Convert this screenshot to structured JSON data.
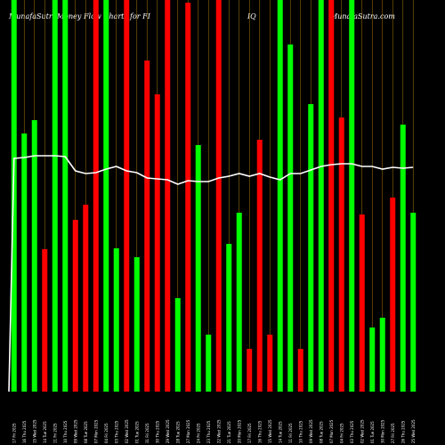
{
  "header": {
    "brand_left": "MunafaSutra",
    "title": "Money Flow  Charts for FI",
    "ticker": "IQ",
    "brand_right": "MunafaSutra.com"
  },
  "colors": {
    "background": "#000000",
    "up": "#00ff00",
    "down": "#ff0000",
    "line": "#ffffff",
    "grid": "#b8860b"
  },
  "chart_data": {
    "type": "bar",
    "bar_axis_range": [
      0,
      440
    ],
    "line_axis_range": [
      0,
      440
    ],
    "categories": [
      "17 Fri 2025",
      "16 Thu 2025",
      "15 Wed 2025",
      "14 Tue 2025",
      "11 Fri 2025",
      "10 Thu 2025",
      "09 Wed 2025",
      "08 Tue 2025",
      "07 Mon 2025",
      "04 Fri 2025",
      "03 Thu 2025",
      "02 Wed 2025",
      "01 Tue 2025",
      "31 Fri 2025",
      "30 Thu 2025",
      "29 Wed 2025",
      "28 Tue 2025",
      "27 Mon 2025",
      "24 Fri 2025",
      "23 Thu 2025",
      "22 Wed 2025",
      "21 Tue 2025",
      "20 Mon 2025",
      "17 Fri 2025",
      "16 Thu 2025",
      "15 Wed 2025",
      "14 Tue 2025",
      "11 Fri 2025",
      "10 Thu 2025",
      "09 Wed 2025",
      "08 Tue 2025",
      "07 Mon 2025",
      "04 Fri 2025",
      "03 Thu 2025",
      "02 Wed 2025",
      "01 Tue 2025",
      "30 Mon 2025",
      "27 Fri 2025",
      "26 Thu 2025",
      "25 Wed 2025"
    ],
    "directions": [
      "up",
      "up",
      "up",
      "down",
      "up",
      "up",
      "down",
      "down",
      "down",
      "up",
      "up",
      "down",
      "up",
      "down",
      "down",
      "down",
      "up",
      "down",
      "up",
      "up",
      "down",
      "up",
      "up",
      "down",
      "down",
      "down",
      "up",
      "up",
      "down",
      "up",
      "up",
      "down",
      "down",
      "up",
      "down",
      "up",
      "up",
      "down",
      "up",
      "up"
    ],
    "bar_values": [
      440,
      290,
      305,
      160,
      440,
      440,
      193,
      210,
      440,
      440,
      161,
      440,
      151,
      372,
      334,
      440,
      105,
      437,
      277,
      64,
      440,
      166,
      201,
      48,
      283,
      64,
      440,
      390,
      48,
      323,
      440,
      440,
      308,
      440,
      199,
      72,
      83,
      218,
      300,
      201
    ],
    "line_values": [
      262,
      263,
      265,
      265,
      265,
      264,
      248,
      245,
      246,
      250,
      253,
      248,
      246,
      240,
      239,
      238,
      233,
      237,
      236,
      236,
      240,
      242,
      245,
      242,
      245,
      241,
      238,
      245,
      245,
      249,
      253,
      255,
      256,
      256,
      253,
      253,
      250,
      252,
      251,
      252
    ]
  }
}
